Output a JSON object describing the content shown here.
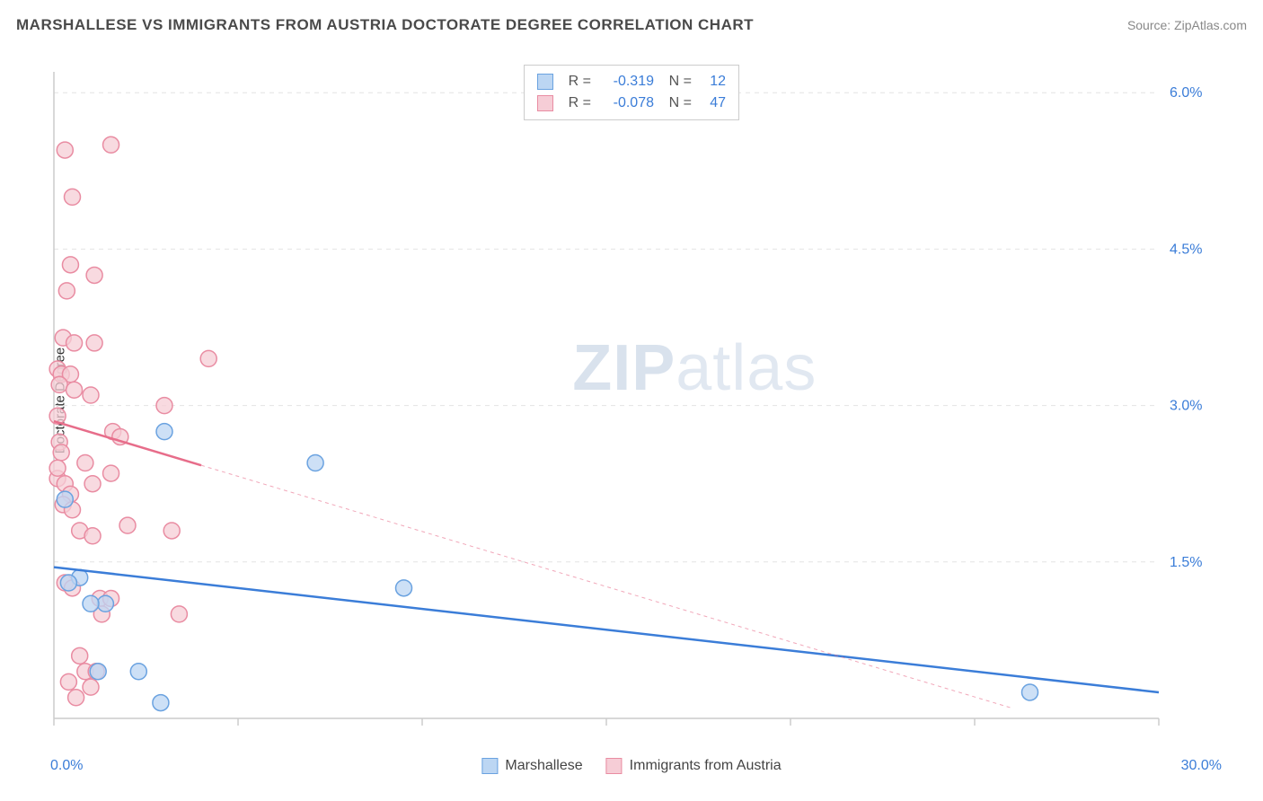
{
  "title": "MARSHALLESE VS IMMIGRANTS FROM AUSTRIA DOCTORATE DEGREE CORRELATION CHART",
  "source_label": "Source:",
  "source_name": "ZipAtlas.com",
  "watermark_bold": "ZIP",
  "watermark_rest": "atlas",
  "ylabel": "Doctorate Degree",
  "chart": {
    "type": "scatter",
    "xlim": [
      0,
      30
    ],
    "ylim": [
      0,
      6.2
    ],
    "x_origin_label": "0.0%",
    "x_max_label": "30.0%",
    "y_ticks": [
      1.5,
      3.0,
      4.5,
      6.0
    ],
    "y_tick_labels": [
      "1.5%",
      "3.0%",
      "4.5%",
      "6.0%"
    ],
    "grid_color": "#e4e4e4",
    "axis_color": "#cccccc",
    "tick_color": "#cccccc",
    "background_color": "#ffffff",
    "label_color": "#3b7dd8",
    "label_fontsize": 16
  },
  "series": [
    {
      "key": "marshallese",
      "label": "Marshallese",
      "fill": "#bcd6f3",
      "stroke": "#6aa2e0",
      "line_color": "#3b7dd8",
      "line_solid": true,
      "marker_r": 9,
      "R": "-0.319",
      "N": "12",
      "trend": {
        "x1": 0,
        "y1": 1.45,
        "x2": 30,
        "y2": 0.25
      },
      "points": [
        [
          0.3,
          2.1
        ],
        [
          1.4,
          1.1
        ],
        [
          1.0,
          1.1
        ],
        [
          1.2,
          0.45
        ],
        [
          2.3,
          0.45
        ],
        [
          0.7,
          1.35
        ],
        [
          3.0,
          2.75
        ],
        [
          2.9,
          0.15
        ],
        [
          7.1,
          2.45
        ],
        [
          9.5,
          1.25
        ],
        [
          26.5,
          0.25
        ],
        [
          0.4,
          1.3
        ]
      ]
    },
    {
      "key": "austria",
      "label": "Immigrants from Austria",
      "fill": "#f6cdd6",
      "stroke": "#e98ca2",
      "line_color": "#e76d8a",
      "line_solid": false,
      "marker_r": 9,
      "R": "-0.078",
      "N": "47",
      "trend": {
        "x1": 0,
        "y1": 2.85,
        "x2": 26,
        "y2": 0.1
      },
      "points": [
        [
          0.3,
          5.45
        ],
        [
          1.55,
          5.5
        ],
        [
          0.5,
          5.0
        ],
        [
          0.45,
          4.35
        ],
        [
          1.1,
          4.25
        ],
        [
          0.35,
          4.1
        ],
        [
          0.25,
          3.65
        ],
        [
          0.55,
          3.6
        ],
        [
          1.1,
          3.6
        ],
        [
          4.2,
          3.45
        ],
        [
          0.1,
          3.35
        ],
        [
          0.2,
          3.3
        ],
        [
          0.45,
          3.3
        ],
        [
          0.15,
          3.2
        ],
        [
          0.55,
          3.15
        ],
        [
          1.0,
          3.1
        ],
        [
          3.0,
          3.0
        ],
        [
          0.1,
          2.9
        ],
        [
          0.15,
          2.65
        ],
        [
          1.6,
          2.75
        ],
        [
          1.8,
          2.7
        ],
        [
          0.2,
          2.55
        ],
        [
          0.85,
          2.45
        ],
        [
          1.55,
          2.35
        ],
        [
          0.1,
          2.3
        ],
        [
          0.3,
          2.25
        ],
        [
          0.45,
          2.15
        ],
        [
          0.25,
          2.05
        ],
        [
          0.5,
          2.0
        ],
        [
          1.05,
          2.25
        ],
        [
          0.7,
          1.8
        ],
        [
          1.05,
          1.75
        ],
        [
          2.0,
          1.85
        ],
        [
          3.2,
          1.8
        ],
        [
          0.3,
          1.3
        ],
        [
          0.5,
          1.25
        ],
        [
          1.25,
          1.15
        ],
        [
          1.55,
          1.15
        ],
        [
          1.3,
          1.0
        ],
        [
          3.4,
          1.0
        ],
        [
          0.7,
          0.6
        ],
        [
          0.85,
          0.45
        ],
        [
          1.15,
          0.45
        ],
        [
          0.4,
          0.35
        ],
        [
          1.0,
          0.3
        ],
        [
          0.6,
          0.2
        ],
        [
          0.1,
          2.4
        ]
      ]
    }
  ],
  "stats_labels": {
    "R": "R =",
    "N": "N ="
  },
  "legend": {
    "items": [
      "Marshallese",
      "Immigrants from Austria"
    ]
  }
}
